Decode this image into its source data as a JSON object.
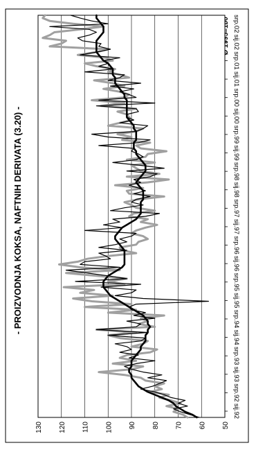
{
  "chart_data": {
    "type": "line",
    "title": "- PROIZVODNJA KOKSA, NAFTNIH DERIVATA (3.20) -",
    "subtitle": "Ø 1995=100",
    "ylim": [
      50,
      130
    ],
    "yticks": [
      50,
      60,
      70,
      80,
      90,
      100,
      110,
      120,
      130
    ],
    "x_tick_labels": [
      "sij.92",
      "srp.92",
      "sij.93",
      "srp.93",
      "sij.94",
      "srp.94",
      "sij.95",
      "srp.95",
      "sij.96",
      "srp.96",
      "sij.97",
      "srp.97",
      "sij.98",
      "srp.98",
      "sij.99",
      "srp.99",
      "sij.00",
      "srp.00",
      "sij.01",
      "srp.01",
      "sij.02",
      "srp.02"
    ],
    "grid": true,
    "series": [
      {
        "style": "grey-thick",
        "color": "#a0a0a0",
        "values": [
          66,
          68,
          72,
          70,
          75,
          69,
          73,
          78,
          74,
          82,
          77,
          80,
          76,
          84,
          86,
          93,
          104,
          90,
          85,
          98,
          88,
          95,
          92,
          82,
          79,
          90,
          85,
          83,
          95,
          100,
          88,
          105,
          80,
          87,
          83,
          86,
          76,
          100,
          88,
          110,
          90,
          107,
          115,
          98,
          112,
          106,
          119,
          93,
          100,
          92,
          105,
          118,
          95,
          112,
          121,
          113,
          109,
          100,
          88,
          94,
          95,
          88,
          87,
          83,
          85,
          90,
          88,
          84,
          79,
          86,
          83,
          91,
          89,
          80,
          88,
          90,
          93,
          87,
          76,
          91,
          92,
          85,
          97,
          83,
          74,
          92,
          78,
          86,
          88,
          90,
          80,
          92,
          84,
          83,
          75,
          86,
          88,
          82,
          94,
          90,
          96,
          88,
          85,
          100,
          95,
          90,
          91,
          92,
          96,
          88,
          103,
          93,
          107,
          93,
          91,
          95,
          102,
          93,
          98,
          106,
          91,
          95,
          100,
          97,
          105,
          110,
          98,
          101,
          113,
          105,
          100,
          125,
          120,
          118,
          128,
          125,
          123,
          112,
          102,
          115,
          125,
          128,
          127
        ]
      },
      {
        "style": "black-thin",
        "color": "#000000",
        "values": [
          61,
          65,
          69,
          72,
          66,
          70,
          67,
          73,
          76,
          80,
          86,
          81,
          78,
          75,
          83,
          77,
          85,
          90,
          93,
          88,
          80,
          91,
          87,
          95,
          90,
          92,
          97,
          86,
          84,
          100,
          83,
          105,
          88,
          86,
          92,
          80,
          89,
          84,
          90,
          91,
          88,
          57,
          85,
          97,
          90,
          88,
          103,
          86,
          114,
          92,
          100,
          109,
          118,
          95,
          112,
          110,
          99,
          101,
          104,
          92,
          104,
          97,
          92,
          95,
          90,
          88,
          110,
          94,
          102,
          95,
          98,
          84,
          78,
          99,
          93,
          85,
          90,
          88,
          82,
          89,
          84,
          87,
          91,
          86,
          89,
          82,
          79,
          92,
          76,
          86,
          98,
          88,
          85,
          87,
          90,
          89,
          104,
          87,
          82,
          100,
          107,
          88,
          85,
          83,
          95,
          89,
          92,
          92,
          87,
          88,
          105,
          80,
          104,
          88,
          91,
          95,
          89,
          99,
          86,
          100,
          95,
          93,
          110,
          98,
          104,
          100,
          102,
          95,
          112,
          105,
          99,
          104,
          103,
          111,
          113,
          108,
          105,
          108,
          125,
          100,
          107,
          112,
          116
        ]
      },
      {
        "style": "black-thick-trend",
        "color": "#000000",
        "values": [
          62,
          64,
          67,
          69,
          71,
          72,
          74,
          77,
          80,
          83,
          85,
          87,
          88,
          89,
          90,
          90,
          91,
          91,
          90,
          90,
          90,
          89,
          88,
          87,
          86,
          86,
          85,
          84,
          84,
          84,
          83,
          83,
          82,
          83,
          83,
          84,
          85,
          87,
          89,
          91,
          93,
          95,
          97,
          99,
          100,
          101,
          102,
          102,
          102,
          101,
          100,
          98,
          96,
          94,
          93,
          93,
          93,
          93,
          93,
          93,
          94,
          95,
          96,
          97,
          97,
          96,
          95,
          94,
          92,
          90,
          88,
          87,
          86,
          86,
          86,
          86,
          86,
          85,
          85,
          85,
          85,
          86,
          87,
          88,
          87,
          86,
          85,
          84,
          84,
          84,
          85,
          86,
          87,
          88,
          88,
          89,
          89,
          89,
          88,
          88,
          88,
          88,
          89,
          89,
          90,
          91,
          92,
          92,
          92,
          92,
          92,
          92,
          92,
          93,
          93,
          94,
          95,
          96,
          97,
          97,
          97,
          98,
          98,
          98,
          99,
          100,
          102,
          103,
          104,
          105,
          105,
          105,
          105,
          105,
          104,
          103,
          102,
          102,
          102,
          103,
          104,
          105,
          105
        ]
      }
    ]
  }
}
